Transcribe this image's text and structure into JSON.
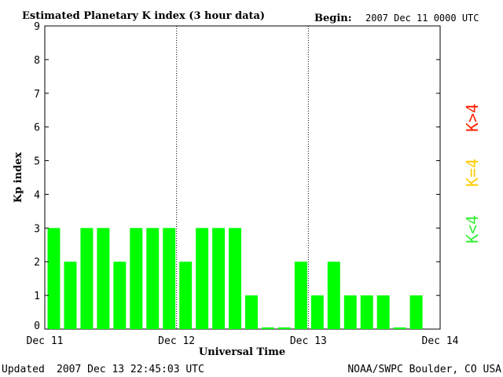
{
  "header": {
    "title": "Estimated Planetary K index (3 hour data)",
    "begin_label": "Begin:",
    "begin_value": "2007 Dec 11 0000 UTC"
  },
  "footer": {
    "updated_label": "Updated",
    "updated_value": "2007 Dec 13 22:45:03 UTC",
    "source": "NOAA/SWPC Boulder, CO USA"
  },
  "legend": {
    "items": [
      {
        "label": "K<4",
        "color": "#33ee33"
      },
      {
        "label": "K=4",
        "color": "#ffcc00"
      },
      {
        "label": "K>4",
        "color": "#ff2200"
      }
    ]
  },
  "colors": {
    "bar": "#00ff00",
    "axis": "#000000",
    "divider": "#000000"
  },
  "chart_data": {
    "type": "bar",
    "title": "Estimated Planetary K index (3 hour data)",
    "xlabel": "Universal Time",
    "ylabel": "Kp index",
    "ylim": [
      0,
      9
    ],
    "yticks": [
      0,
      1,
      2,
      3,
      4,
      5,
      6,
      7,
      8,
      9
    ],
    "xticks": [
      "Dec 11",
      "Dec 12",
      "Dec 13",
      "Dec 14"
    ],
    "interval_hours": 3,
    "grid": false,
    "day_dividers": true,
    "values": [
      3,
      2,
      3,
      3,
      2,
      3,
      3,
      3,
      2,
      3,
      3,
      3,
      1,
      0.05,
      0.05,
      2,
      1,
      2,
      1,
      1,
      1,
      0.05,
      1
    ]
  }
}
